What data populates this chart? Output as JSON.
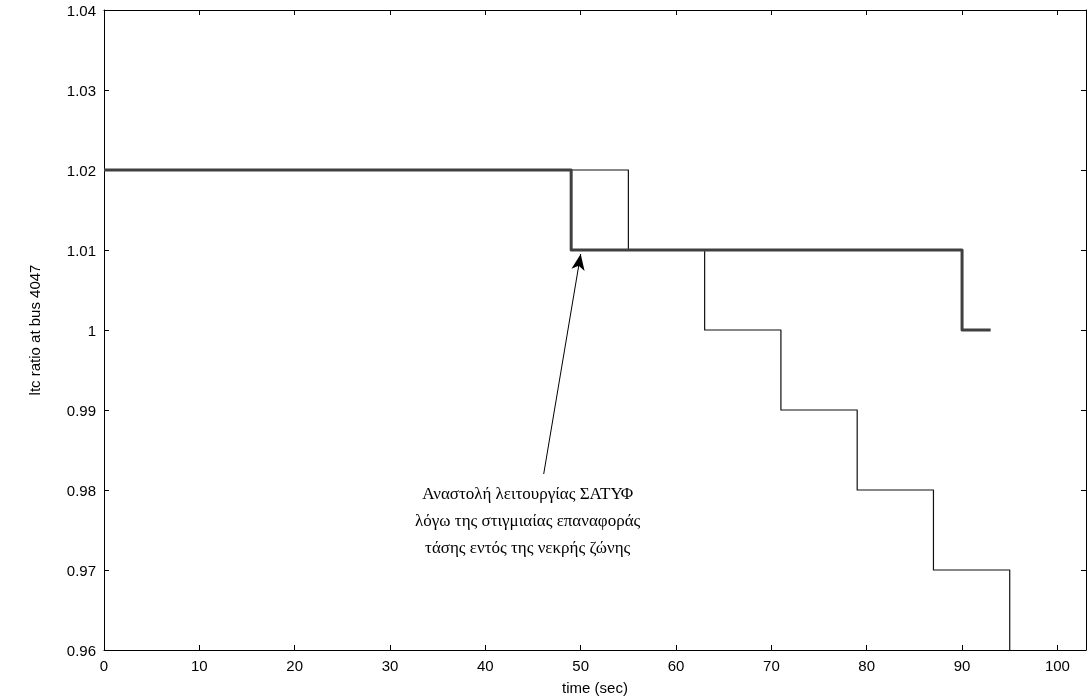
{
  "chart_data": {
    "type": "step",
    "xlabel": "time (sec)",
    "ylabel": "ltc ratio at bus 4047",
    "series": [
      {
        "color": "#111111",
        "x": [
          0,
          55,
          63,
          71,
          79,
          87,
          95
        ],
        "values": [
          1.02,
          1.01,
          1.0,
          0.99,
          0.98,
          0.97,
          0.96
        ]
      },
      {
        "color": "#404040",
        "x": [
          0,
          49,
          90,
          93
        ],
        "values": [
          1.02,
          1.01,
          1.0,
          1.0
        ]
      }
    ],
    "xlim": [
      0,
      103
    ],
    "xticks": [
      0,
      10,
      20,
      30,
      40,
      50,
      60,
      70,
      80,
      90,
      100
    ],
    "ylim": [
      0.96,
      1.04
    ],
    "yticks": [
      0.96,
      0.97,
      0.98,
      0.99,
      1,
      1.01,
      1.02,
      1.03,
      1.04
    ],
    "grid": false,
    "marker": "none",
    "line_style": "solid",
    "annotations": [
      {
        "text": "Αναστολή λειτουργίας ΣΑΤΥΦ\nλόγω της στιγμιαίας επαναφοράς\nτάσης εντός της νεκρής ζώνης",
        "x": 50,
        "y": 1.0095
      }
    ]
  }
}
